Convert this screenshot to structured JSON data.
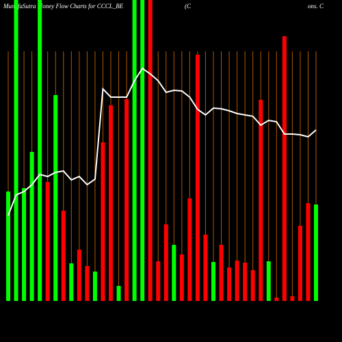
{
  "chart_data": {
    "type": "bar",
    "title": "MunafaSutra Money Flow Charts for CCCL_BE",
    "annotations": [
      "(C",
      "ons. C"
    ],
    "categories": [
      null,
      null,
      null,
      null,
      null,
      null,
      null,
      null,
      null,
      null,
      null,
      null,
      null,
      null,
      null,
      null,
      null,
      null,
      null,
      null,
      null,
      null,
      null,
      null,
      null,
      null,
      null,
      null,
      null,
      null,
      null,
      null,
      null,
      null,
      null,
      null,
      null,
      null,
      null,
      null
    ],
    "ylim": [
      0,
      440
    ],
    "series": [
      {
        "type": "bar",
        "values": [
          160,
          440,
          165,
          218,
          440,
          174,
          301,
          132,
          55,
          75,
          51,
          43,
          232,
          286,
          22,
          295,
          440,
          440,
          440,
          58,
          112,
          82,
          68,
          150,
          360,
          97,
          57,
          82,
          49,
          59,
          56,
          45,
          294,
          58,
          5,
          387,
          7,
          110,
          143,
          141
        ],
        "colors": [
          "#00ff00",
          "#00ff00",
          "#00ff00",
          "#00ff00",
          "#00ff00",
          "#ff0000",
          "#00ff00",
          "#ff0000",
          "#00ff00",
          "#ff0000",
          "#ff0000",
          "#00ff00",
          "#ff0000",
          "#ff0000",
          "#00ff00",
          "#ff0000",
          "#00ff00",
          "#00ff00",
          "#ff0000",
          "#ff0000",
          "#ff0000",
          "#00ff00",
          "#ff0000",
          "#ff0000",
          "#ff0000",
          "#ff0000",
          "#00ff00",
          "#ff0000",
          "#ff0000",
          "#ff0000",
          "#ff0000",
          "#ff0000",
          "#ff0000",
          "#00ff00",
          "#ff0000",
          "#ff0000",
          "#ff0000",
          "#ff0000",
          "#ff0000",
          "#00ff00"
        ]
      },
      {
        "type": "line",
        "color": "#ffffff",
        "values": [
          125,
          155,
          160,
          170,
          185,
          182,
          188,
          190,
          177,
          182,
          170,
          178,
          310,
          298,
          298,
          298,
          322,
          340,
          332,
          322,
          305,
          308,
          307,
          298,
          280,
          272,
          282,
          281,
          278,
          274,
          272,
          270,
          257,
          264,
          262,
          244,
          244,
          243,
          240,
          250
        ]
      }
    ],
    "grid_color": "#b35900"
  }
}
